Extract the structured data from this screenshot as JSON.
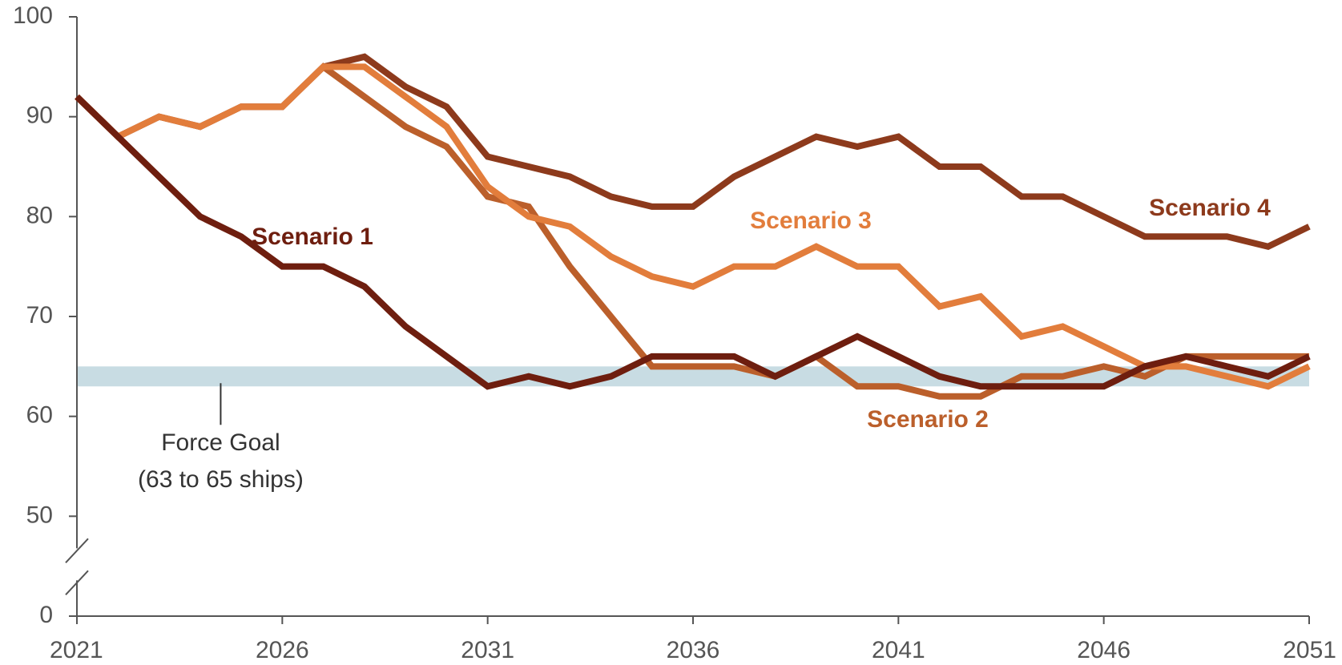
{
  "chart_data": {
    "type": "line",
    "x": [
      2021,
      2022,
      2023,
      2024,
      2025,
      2026,
      2027,
      2028,
      2029,
      2030,
      2031,
      2032,
      2033,
      2034,
      2035,
      2036,
      2037,
      2038,
      2039,
      2040,
      2041,
      2042,
      2043,
      2044,
      2045,
      2046,
      2047,
      2048,
      2049,
      2050,
      2051
    ],
    "xlim": [
      2021,
      2051
    ],
    "xticks": [
      2021,
      2026,
      2031,
      2036,
      2041,
      2046,
      2051
    ],
    "ylim": [
      0,
      100
    ],
    "yticks": [
      0,
      50,
      60,
      70,
      80,
      90,
      100
    ],
    "axis_break": [
      0,
      50
    ],
    "series": [
      {
        "name": "Scenario 1",
        "color": "#6e1e0f",
        "values": [
          92,
          88,
          84,
          80,
          78,
          75,
          75,
          73,
          69,
          66,
          63,
          64,
          63,
          64,
          66,
          66,
          66,
          64,
          66,
          68,
          66,
          64,
          63,
          63,
          63,
          63,
          65,
          66,
          65,
          64,
          66
        ]
      },
      {
        "name": "Scenario 2",
        "color": "#bb5f2b",
        "values": [
          92,
          88,
          90,
          89,
          91,
          91,
          95,
          92,
          89,
          87,
          82,
          81,
          75,
          70,
          65,
          65,
          65,
          64,
          66,
          63,
          63,
          62,
          62,
          64,
          64,
          65,
          64,
          66,
          66,
          66,
          66
        ]
      },
      {
        "name": "Scenario 3",
        "color": "#e27d3c",
        "values": [
          92,
          88,
          90,
          89,
          91,
          91,
          95,
          95,
          92,
          89,
          83,
          80,
          79,
          76,
          74,
          73,
          75,
          75,
          77,
          75,
          75,
          71,
          72,
          68,
          69,
          67,
          65,
          65,
          64,
          63,
          65
        ]
      },
      {
        "name": "Scenario 4",
        "color": "#8d3a1c",
        "values": [
          92,
          88,
          90,
          89,
          91,
          91,
          95,
          96,
          93,
          91,
          86,
          85,
          84,
          82,
          81,
          81,
          84,
          86,
          88,
          87,
          88,
          85,
          85,
          82,
          82,
          80,
          78,
          78,
          78,
          77,
          79
        ]
      }
    ],
    "force_goal": {
      "range": [
        63,
        65
      ],
      "color": "#c8dce3",
      "label": [
        "Force Goal",
        "(63 to 65 ships)"
      ]
    }
  }
}
